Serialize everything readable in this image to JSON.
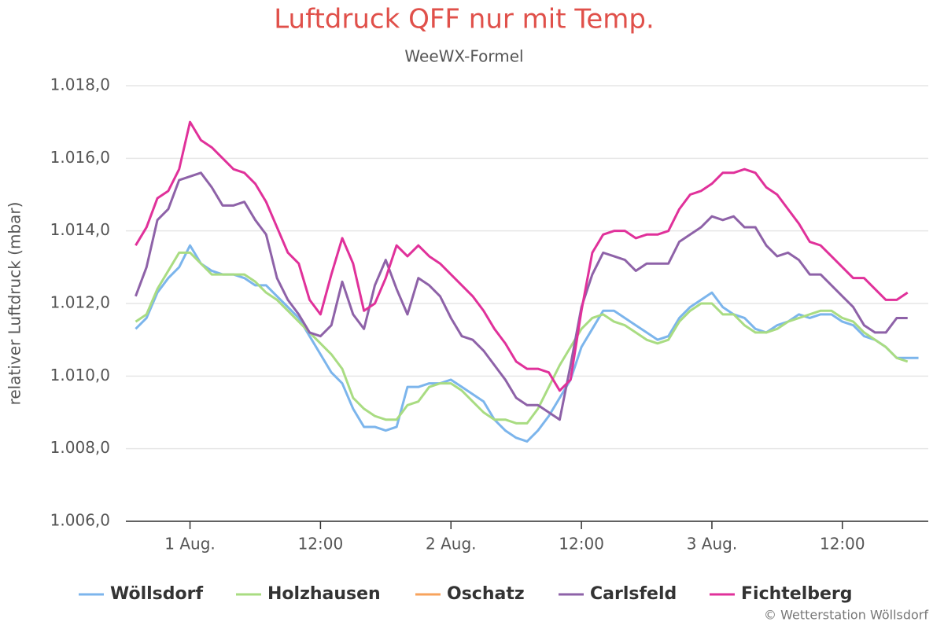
{
  "chart_data": {
    "type": "line",
    "title": "Luftdruck QFF nur mit Temp.",
    "subtitle": "WeeWX-Formel",
    "y_label": "relativer Luftdruck (mbar)",
    "credits": "© Wetterstation Wöllsdorf",
    "legend": "bottom",
    "grid": true,
    "x": [
      -5,
      -4,
      -3,
      -2,
      -1,
      0,
      1,
      2,
      3,
      4,
      5,
      6,
      7,
      8,
      9,
      10,
      11,
      12,
      13,
      14,
      15,
      16,
      17,
      18,
      19,
      20,
      21,
      22,
      23,
      24,
      25,
      26,
      27,
      28,
      29,
      30,
      31,
      32,
      33,
      34,
      35,
      36,
      37,
      38,
      39,
      40,
      41,
      42,
      43,
      44,
      45,
      46,
      47,
      48,
      49,
      50,
      51,
      52,
      53,
      54,
      55,
      56,
      57,
      58,
      59,
      60,
      61,
      62,
      63,
      64,
      65,
      66,
      67
    ],
    "xlim": [
      -5.9,
      67.9
    ],
    "xticks": [
      {
        "value": 0,
        "label": "1 Aug."
      },
      {
        "value": 12,
        "label": "12:00"
      },
      {
        "value": 24,
        "label": "2 Aug."
      },
      {
        "value": 36,
        "label": "12:00"
      },
      {
        "value": 48,
        "label": "3 Aug."
      },
      {
        "value": 60,
        "label": "12:00"
      }
    ],
    "ylim": [
      1006,
      1018
    ],
    "yticks": [
      {
        "value": 1006,
        "label": "1.006,0"
      },
      {
        "value": 1008,
        "label": "1.008,0"
      },
      {
        "value": 1010,
        "label": "1.010,0"
      },
      {
        "value": 1012,
        "label": "1.012,0"
      },
      {
        "value": 1014,
        "label": "1.014,0"
      },
      {
        "value": 1016,
        "label": "1.016,0"
      },
      {
        "value": 1018,
        "label": "1.018,0"
      }
    ],
    "series": [
      {
        "name": "Wöllsdorf",
        "color": "#7cb5ec",
        "values": [
          1011.3,
          1011.6,
          1012.3,
          1012.7,
          1013.0,
          1013.6,
          1013.1,
          1012.9,
          1012.8,
          1012.8,
          1012.7,
          1012.5,
          1012.5,
          1012.2,
          1011.9,
          1011.6,
          1011.1,
          1010.6,
          1010.1,
          1009.8,
          1009.1,
          1008.6,
          1008.6,
          1008.5,
          1008.6,
          1009.7,
          1009.7,
          1009.8,
          1009.8,
          1009.9,
          1009.7,
          1009.5,
          1009.3,
          1008.8,
          1008.5,
          1008.3,
          1008.2,
          1008.5,
          1008.9,
          1009.4,
          1009.9,
          1010.8,
          1011.3,
          1011.8,
          1011.8,
          1011.6,
          1011.4,
          1011.2,
          1011.0,
          1011.1,
          1011.6,
          1011.9,
          1012.1,
          1012.3,
          1011.9,
          1011.7,
          1011.6,
          1011.3,
          1011.2,
          1011.4,
          1011.5,
          1011.7,
          1011.6,
          1011.7,
          1011.7,
          1011.5,
          1011.4,
          1011.1,
          1011.0,
          1010.8,
          1010.5,
          1010.5,
          1010.5
        ]
      },
      {
        "name": "Holzhausen",
        "color": "#a9dc82",
        "values": [
          1011.5,
          1011.7,
          1012.4,
          1012.9,
          1013.4,
          1013.4,
          1013.1,
          1012.8,
          1012.8,
          1012.8,
          1012.8,
          1012.6,
          1012.3,
          1012.1,
          1011.8,
          1011.5,
          1011.2,
          1010.9,
          1010.6,
          1010.2,
          1009.4,
          1009.1,
          1008.9,
          1008.8,
          1008.8,
          1009.2,
          1009.3,
          1009.7,
          1009.8,
          1009.8,
          1009.6,
          1009.3,
          1009.0,
          1008.8,
          1008.8,
          1008.7,
          1008.7,
          1009.1,
          1009.7,
          1010.3,
          1010.8,
          1011.3,
          1011.6,
          1011.7,
          1011.5,
          1011.4,
          1011.2,
          1011.0,
          1010.9,
          1011.0,
          1011.5,
          1011.8,
          1012.0,
          1012.0,
          1011.7,
          1011.7,
          1011.4,
          1011.2,
          1011.2,
          1011.3,
          1011.5,
          1011.6,
          1011.7,
          1011.8,
          1011.8,
          1011.6,
          1011.5,
          1011.2,
          1011.0,
          1010.8,
          1010.5,
          1010.4,
          null
        ]
      },
      {
        "name": "Oschatz",
        "color": "#f7a35c",
        "values": [
          null,
          null,
          null,
          null,
          null,
          null,
          null,
          null,
          null,
          null,
          null,
          null,
          null,
          null,
          null,
          null,
          null,
          null,
          null,
          null,
          null,
          null,
          null,
          null,
          null,
          null,
          null,
          null,
          null,
          null,
          null,
          null,
          null,
          null,
          null,
          null,
          null,
          null,
          null,
          null,
          null,
          null,
          null,
          null,
          null,
          null,
          null,
          null,
          null,
          null,
          null,
          null,
          null,
          null,
          null,
          null,
          null,
          null,
          null,
          null,
          null,
          null,
          null,
          null,
          null,
          null,
          null,
          null,
          null,
          null,
          null,
          null,
          null
        ]
      },
      {
        "name": "Carlsfeld",
        "color": "#8e62a8",
        "values": [
          1012.2,
          1013.0,
          1014.3,
          1014.6,
          1015.4,
          1015.5,
          1015.6,
          1015.2,
          1014.7,
          1014.7,
          1014.8,
          1014.3,
          1013.9,
          1012.7,
          1012.1,
          1011.7,
          1011.2,
          1011.1,
          1011.4,
          1012.6,
          1011.7,
          1011.3,
          1012.5,
          1013.2,
          1012.4,
          1011.7,
          1012.7,
          1012.5,
          1012.2,
          1011.6,
          1011.1,
          1011.0,
          1010.7,
          1010.3,
          1009.9,
          1009.4,
          1009.2,
          1009.2,
          1009.0,
          1008.8,
          1010.3,
          1011.9,
          1012.8,
          1013.4,
          1013.3,
          1013.2,
          1012.9,
          1013.1,
          1013.1,
          1013.1,
          1013.7,
          1013.9,
          1014.1,
          1014.4,
          1014.3,
          1014.4,
          1014.1,
          1014.1,
          1013.6,
          1013.3,
          1013.4,
          1013.2,
          1012.8,
          1012.8,
          1012.5,
          1012.2,
          1011.9,
          1011.4,
          1011.2,
          1011.2,
          1011.6,
          1011.6,
          null
        ]
      },
      {
        "name": "Fichtelberg",
        "color": "#e0319a",
        "values": [
          1013.6,
          1014.1,
          1014.9,
          1015.1,
          1015.7,
          1017.0,
          1016.5,
          1016.3,
          1016.0,
          1015.7,
          1015.6,
          1015.3,
          1014.8,
          1014.1,
          1013.4,
          1013.1,
          1012.1,
          1011.7,
          1012.8,
          1013.8,
          1013.1,
          1011.8,
          1012.0,
          1012.7,
          1013.6,
          1013.3,
          1013.6,
          1013.3,
          1013.1,
          1012.8,
          1012.5,
          1012.2,
          1011.8,
          1011.3,
          1010.9,
          1010.4,
          1010.2,
          1010.2,
          1010.1,
          1009.6,
          1009.9,
          1011.8,
          1013.4,
          1013.9,
          1014.0,
          1014.0,
          1013.8,
          1013.9,
          1013.9,
          1014.0,
          1014.6,
          1015.0,
          1015.1,
          1015.3,
          1015.6,
          1015.6,
          1015.7,
          1015.6,
          1015.2,
          1015.0,
          1014.6,
          1014.2,
          1013.7,
          1013.6,
          1013.3,
          1013.0,
          1012.7,
          1012.7,
          1012.4,
          1012.1,
          1012.1,
          1012.3,
          null
        ]
      }
    ]
  }
}
